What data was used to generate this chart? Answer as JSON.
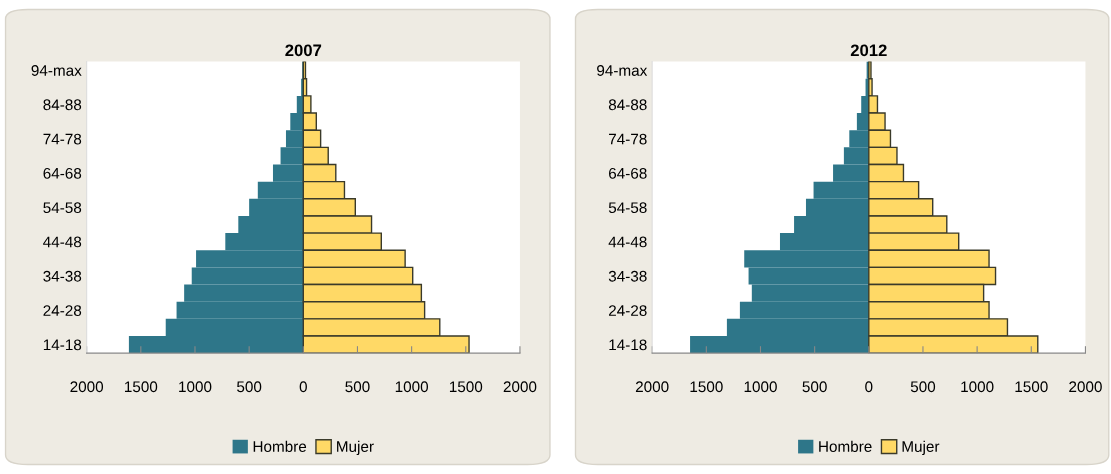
{
  "chart_data": [
    {
      "type": "bar",
      "orientation": "horizontal",
      "stacked": true,
      "title": "2007",
      "categories": [
        "94-max",
        null,
        "84-88",
        null,
        "74-78",
        null,
        "64-68",
        null,
        "54-58",
        null,
        "44-48",
        null,
        "34-38",
        null,
        "24-28",
        null,
        "14-18"
      ],
      "series": [
        {
          "name": "Hombre",
          "color": "#2e7689",
          "values": [
            -10,
            -20,
            -60,
            -120,
            -160,
            -210,
            -280,
            -420,
            -500,
            -600,
            -720,
            -990,
            -1030,
            -1100,
            -1170,
            -1270,
            -1610
          ]
        },
        {
          "name": "Mujer",
          "color": "#ffd966",
          "values": [
            20,
            30,
            70,
            120,
            160,
            230,
            300,
            380,
            480,
            630,
            720,
            940,
            1010,
            1090,
            1120,
            1260,
            1530
          ]
        }
      ],
      "xlim": [
        -2000,
        2000
      ],
      "xticks": [
        {
          "value": -2000,
          "label": "2000"
        },
        {
          "value": -1500,
          "label": "1500"
        },
        {
          "value": -1000,
          "label": "1000"
        },
        {
          "value": -500,
          "label": "500"
        },
        0,
        500,
        1000,
        1500,
        2000
      ],
      "grid": false,
      "legend": "bottom"
    },
    {
      "type": "bar",
      "orientation": "horizontal",
      "stacked": true,
      "title": "2012",
      "categories": [
        "94-max",
        null,
        "84-88",
        null,
        "74-78",
        null,
        "64-68",
        null,
        "54-58",
        null,
        "44-48",
        null,
        "34-38",
        null,
        "24-28",
        null,
        "14-18"
      ],
      "series": [
        {
          "name": "Hombre",
          "color": "#2e7689",
          "values": [
            -20,
            -30,
            -70,
            -110,
            -180,
            -230,
            -330,
            -510,
            -580,
            -690,
            -820,
            -1150,
            -1110,
            -1080,
            -1190,
            -1310,
            -1650
          ]
        },
        {
          "name": "Mujer",
          "color": "#ffd966",
          "values": [
            20,
            30,
            80,
            150,
            200,
            260,
            320,
            460,
            590,
            720,
            830,
            1110,
            1170,
            1060,
            1110,
            1280,
            1560
          ]
        }
      ],
      "xlim": [
        -2000,
        2000
      ],
      "xticks": [
        {
          "value": -2000,
          "label": "2000"
        },
        {
          "value": -1500,
          "label": "1500"
        },
        {
          "value": -1000,
          "label": "1000"
        },
        {
          "value": -500,
          "label": "500"
        },
        0,
        500,
        1000,
        1500,
        2000
      ],
      "grid": false,
      "legend": "bottom"
    }
  ]
}
